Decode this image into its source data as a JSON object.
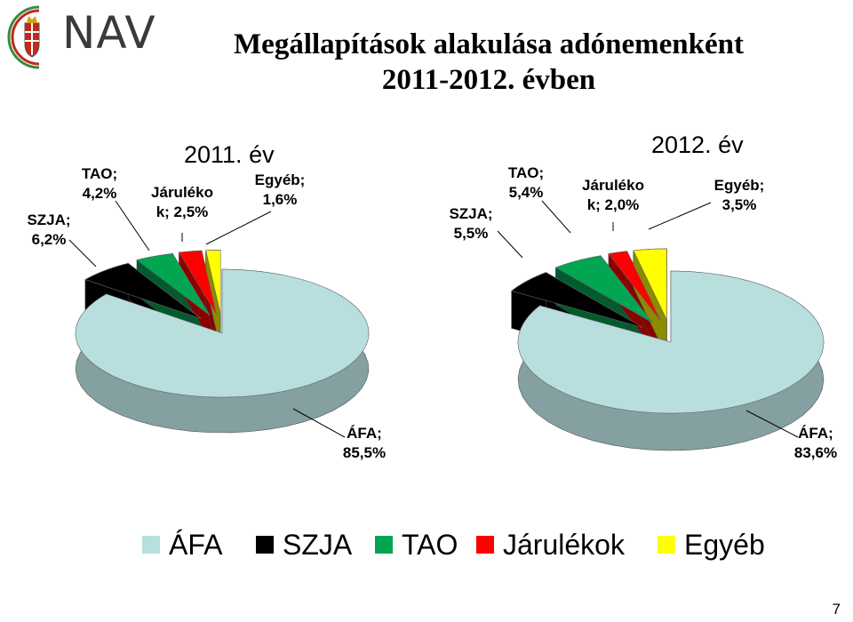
{
  "header": {
    "logo_text": "NAV",
    "title_line1": "Megállapítások alakulása adónemenként",
    "title_line2": "2011-2012. évben"
  },
  "colors": {
    "afa": "#b8dede",
    "szja": "#000000",
    "tao": "#00a651",
    "jarulekok": "#ff0000",
    "egyeb": "#ffff00",
    "logo_green": "#3c8a3f",
    "logo_red": "#c4281c"
  },
  "chart_data": [
    {
      "type": "pie",
      "title": "2011. év",
      "slices": [
        {
          "key": "afa",
          "label_line1": "ÁFA;",
          "label_line2": "85,5%",
          "value": 85.5
        },
        {
          "key": "szja",
          "label_line1": "SZJA;",
          "label_line2": "6,2%",
          "value": 6.2
        },
        {
          "key": "tao",
          "label_line1": "TAO;",
          "label_line2": "4,2%",
          "value": 4.2
        },
        {
          "key": "jarulekok",
          "label_line1": "Járuléko",
          "label_line2": "k; 2,5%",
          "value": 2.5
        },
        {
          "key": "egyeb",
          "label_line1": "Egyéb;",
          "label_line2": "1,6%",
          "value": 1.6
        }
      ]
    },
    {
      "type": "pie",
      "title": "2012. év",
      "slices": [
        {
          "key": "afa",
          "label_line1": "ÁFA;",
          "label_line2": "83,6%",
          "value": 83.6
        },
        {
          "key": "szja",
          "label_line1": "SZJA;",
          "label_line2": "5,5%",
          "value": 5.5
        },
        {
          "key": "tao",
          "label_line1": "TAO;",
          "label_line2": "5,4%",
          "value": 5.4
        },
        {
          "key": "jarulekok",
          "label_line1": "Járuléko",
          "label_line2": "k; 2,0%",
          "value": 2.0
        },
        {
          "key": "egyeb",
          "label_line1": "Egyéb;",
          "label_line2": "3,5%",
          "value": 3.5
        }
      ]
    }
  ],
  "legend": [
    {
      "key": "afa",
      "label": "ÁFA"
    },
    {
      "key": "szja",
      "label": "SZJA"
    },
    {
      "key": "tao",
      "label": "TAO"
    },
    {
      "key": "jarulekok",
      "label": "Járulékok"
    },
    {
      "key": "egyeb",
      "label": "Egyéb"
    }
  ],
  "page_number": "7"
}
